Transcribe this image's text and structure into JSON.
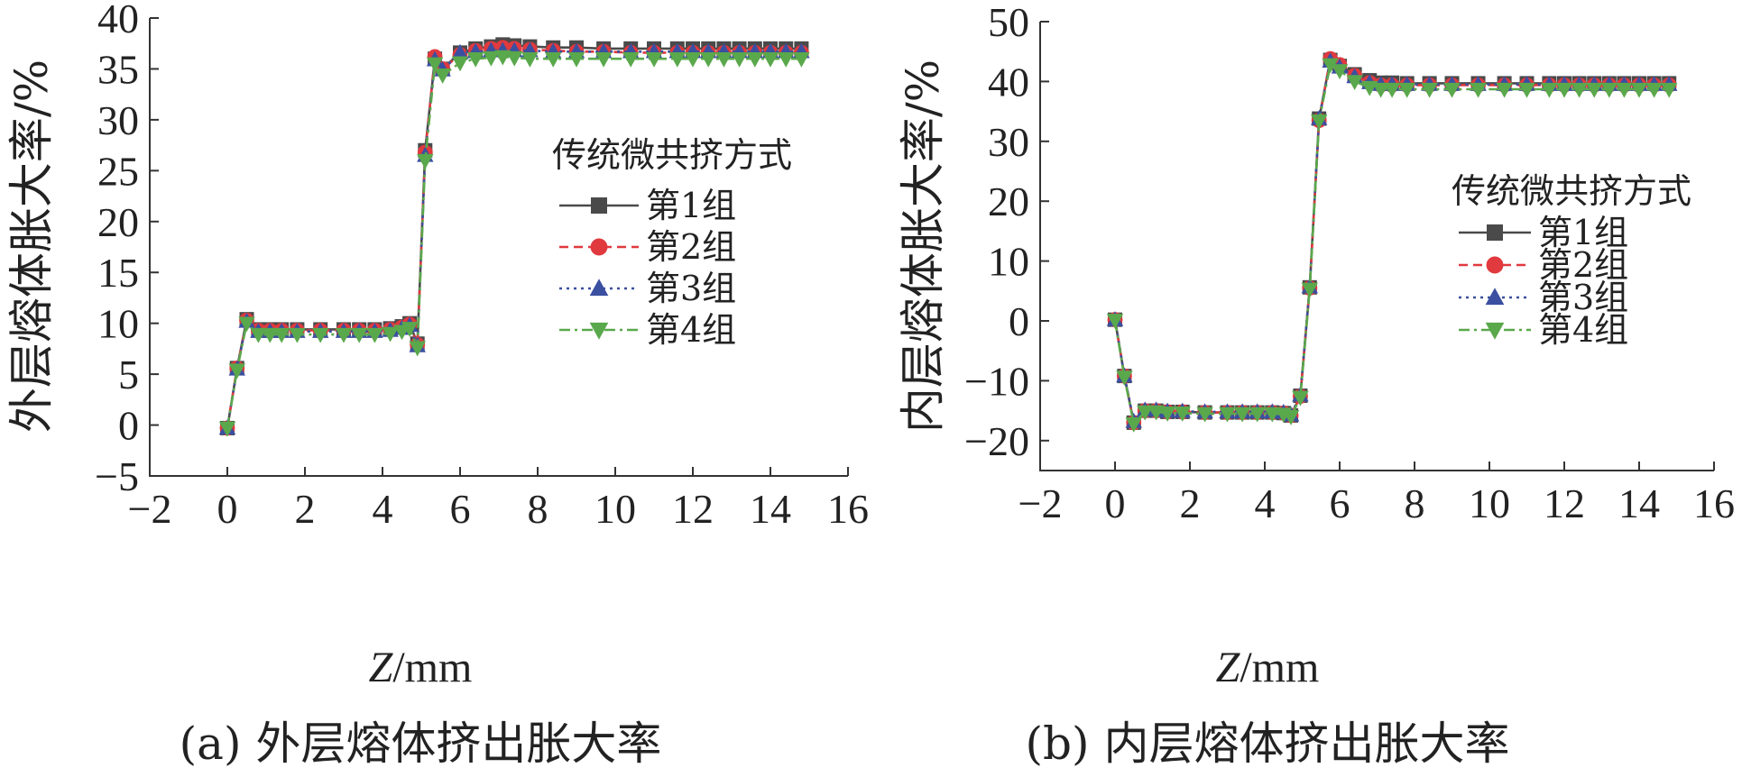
{
  "chart_data": [
    {
      "type": "line",
      "caption": "(a) 外层熔体挤出胀大率",
      "xlabel_italic": "Z",
      "xlabel_rest": "/mm",
      "ylabel": "外层熔体胀大率/%",
      "xlim": [
        -2,
        16
      ],
      "ylim": [
        -5,
        40
      ],
      "xticks": [
        -2,
        0,
        2,
        4,
        6,
        8,
        10,
        12,
        14,
        16
      ],
      "yticks": [
        -5,
        0,
        5,
        10,
        15,
        20,
        25,
        30,
        35,
        40
      ],
      "legend_title": "传统微共挤方式",
      "legend_position": "center-right",
      "x": [
        0,
        0.25,
        0.5,
        0.8,
        1.1,
        1.4,
        1.8,
        2.4,
        3.0,
        3.4,
        3.8,
        4.2,
        4.5,
        4.7,
        4.9,
        5.1,
        5.35,
        5.55,
        6.0,
        6.4,
        6.8,
        7.1,
        7.4,
        7.8,
        8.4,
        9.0,
        9.7,
        10.4,
        11.0,
        11.6,
        12.0,
        12.4,
        12.8,
        13.2,
        13.6,
        14.0,
        14.4,
        14.8
      ],
      "series": [
        {
          "name": "第1组",
          "color": "#4a4a4a",
          "marker": "square",
          "dash": "",
          "values": [
            -0.3,
            5.6,
            10.4,
            9.4,
            9.4,
            9.4,
            9.4,
            9.4,
            9.4,
            9.4,
            9.4,
            9.5,
            9.7,
            10.0,
            8.0,
            27.0,
            36.0,
            35.0,
            36.6,
            37.0,
            37.2,
            37.4,
            37.3,
            37.2,
            37.1,
            37.1,
            37.0,
            37.0,
            37.0,
            37.0,
            37.0,
            37.0,
            37.0,
            37.0,
            37.0,
            37.0,
            37.0,
            37.0
          ]
        },
        {
          "name": "第2组",
          "color": "#e0393e",
          "marker": "circle",
          "dash": "10,6",
          "values": [
            -0.3,
            5.6,
            10.3,
            9.3,
            9.3,
            9.3,
            9.3,
            9.3,
            9.3,
            9.3,
            9.3,
            9.4,
            9.6,
            9.9,
            7.9,
            26.8,
            36.2,
            35.0,
            36.4,
            36.8,
            37.0,
            37.1,
            37.0,
            36.9,
            36.8,
            36.7,
            36.7,
            36.6,
            36.6,
            36.6,
            36.6,
            36.6,
            36.6,
            36.6,
            36.6,
            36.6,
            36.6,
            36.6
          ]
        },
        {
          "name": "第3组",
          "color": "#3b4fa0",
          "marker": "triangle",
          "dash": "3,5",
          "values": [
            -0.3,
            5.5,
            10.2,
            9.2,
            9.2,
            9.2,
            9.2,
            9.2,
            9.2,
            9.2,
            9.2,
            9.3,
            9.5,
            9.8,
            7.8,
            26.5,
            35.9,
            34.9,
            36.6,
            36.7,
            36.8,
            36.8,
            36.8,
            36.8,
            36.7,
            36.7,
            36.7,
            36.7,
            36.7,
            36.7,
            36.7,
            36.7,
            36.7,
            36.7,
            36.7,
            36.7,
            36.7,
            36.7
          ]
        },
        {
          "name": "第4组",
          "color": "#5aa84c",
          "marker": "triangle-down",
          "dash": "12,5,3,5",
          "values": [
            -0.3,
            5.4,
            10.0,
            8.9,
            8.9,
            8.9,
            8.9,
            8.9,
            8.9,
            8.9,
            8.9,
            9.0,
            9.2,
            9.5,
            7.6,
            26.0,
            35.5,
            34.4,
            35.6,
            36.0,
            36.1,
            36.2,
            36.1,
            36.0,
            36.0,
            36.0,
            36.0,
            36.0,
            36.0,
            36.0,
            36.0,
            36.0,
            36.0,
            36.0,
            36.0,
            36.0,
            36.0,
            36.0
          ]
        }
      ]
    },
    {
      "type": "line",
      "caption": "(b) 内层熔体挤出胀大率",
      "xlabel_italic": "Z",
      "xlabel_rest": "/mm",
      "ylabel": "内层熔体胀大率/%",
      "xlim": [
        -2,
        16
      ],
      "ylim": [
        -25,
        50
      ],
      "xticks": [
        -2,
        0,
        2,
        4,
        6,
        8,
        10,
        12,
        14,
        16
      ],
      "yticks": [
        -20,
        -10,
        0,
        10,
        20,
        30,
        40,
        50
      ],
      "legend_title": "传统微共挤方式",
      "legend_position": "center-right",
      "x": [
        0,
        0.25,
        0.5,
        0.8,
        1.1,
        1.4,
        1.8,
        2.4,
        3.0,
        3.4,
        3.8,
        4.2,
        4.5,
        4.7,
        4.95,
        5.2,
        5.45,
        5.75,
        6.0,
        6.4,
        6.8,
        7.1,
        7.4,
        7.8,
        8.4,
        9.0,
        9.7,
        10.4,
        11.0,
        11.6,
        12.0,
        12.4,
        12.8,
        13.2,
        13.6,
        14.0,
        14.4,
        14.8
      ],
      "series": [
        {
          "name": "第1组",
          "color": "#4a4a4a",
          "marker": "square",
          "dash": "",
          "values": [
            0.2,
            -9.2,
            -17.0,
            -15.0,
            -15.0,
            -15.2,
            -15.2,
            -15.3,
            -15.3,
            -15.3,
            -15.3,
            -15.3,
            -15.4,
            -15.8,
            -12.5,
            5.6,
            33.8,
            43.6,
            42.6,
            41.2,
            40.2,
            39.8,
            39.8,
            39.7,
            39.7,
            39.7,
            39.7,
            39.7,
            39.7,
            39.7,
            39.7,
            39.7,
            39.7,
            39.7,
            39.7,
            39.7,
            39.7,
            39.7
          ]
        },
        {
          "name": "第2组",
          "color": "#e0393e",
          "marker": "circle",
          "dash": "10,6",
          "values": [
            0.2,
            -9.2,
            -17.0,
            -15.0,
            -15.0,
            -15.2,
            -15.2,
            -15.3,
            -15.3,
            -15.3,
            -15.3,
            -15.3,
            -15.4,
            -15.8,
            -12.6,
            5.5,
            33.5,
            43.8,
            42.8,
            41.0,
            39.8,
            39.4,
            39.4,
            39.4,
            39.4,
            39.4,
            39.4,
            39.4,
            39.4,
            39.4,
            39.4,
            39.4,
            39.4,
            39.4,
            39.4,
            39.4,
            39.4,
            39.4
          ]
        },
        {
          "name": "第3组",
          "color": "#3b4fa0",
          "marker": "triangle",
          "dash": "3,5",
          "values": [
            0.2,
            -9.2,
            -16.8,
            -14.9,
            -14.9,
            -15.1,
            -15.1,
            -15.2,
            -15.2,
            -15.2,
            -15.2,
            -15.2,
            -15.3,
            -15.7,
            -12.4,
            5.7,
            33.8,
            43.4,
            42.4,
            40.8,
            39.8,
            39.5,
            39.5,
            39.5,
            39.5,
            39.5,
            39.5,
            39.5,
            39.5,
            39.5,
            39.5,
            39.5,
            39.5,
            39.5,
            39.5,
            39.5,
            39.5,
            39.5
          ]
        },
        {
          "name": "第4组",
          "color": "#5aa84c",
          "marker": "triangle-down",
          "dash": "12,5,3,5",
          "values": [
            0.1,
            -9.4,
            -17.2,
            -15.2,
            -15.2,
            -15.4,
            -15.4,
            -15.5,
            -15.5,
            -15.5,
            -15.5,
            -15.5,
            -15.6,
            -16.0,
            -12.8,
            5.3,
            33.4,
            42.8,
            41.8,
            40.0,
            39.0,
            38.7,
            38.7,
            38.7,
            38.7,
            38.7,
            38.7,
            38.7,
            38.7,
            38.7,
            38.7,
            38.7,
            38.7,
            38.7,
            38.7,
            38.7,
            38.7,
            38.7
          ]
        }
      ]
    }
  ]
}
